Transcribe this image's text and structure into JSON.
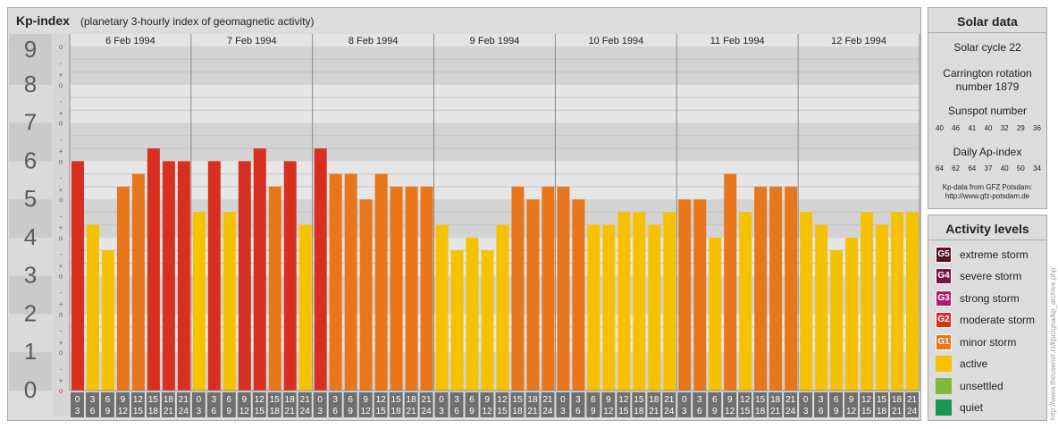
{
  "header": {
    "title": "Kp-index",
    "subtitle": "(planetary 3-hourly index of geomagnetic activity)"
  },
  "chart_data": {
    "type": "bar",
    "title": "Kp-index",
    "subtitle": "(planetary 3-hourly index of geomagnetic activity)",
    "ylim": [
      0,
      9
    ],
    "y_ticks": [
      "0",
      "1",
      "2",
      "3",
      "4",
      "5",
      "6",
      "7",
      "8",
      "9"
    ],
    "y_minor_ticks": [
      "o",
      "+",
      "-"
    ],
    "days": [
      "6 Feb 1994",
      "7 Feb 1994",
      "8 Feb 1994",
      "9 Feb 1994",
      "10 Feb 1994",
      "11 Feb 1994",
      "12 Feb 1994"
    ],
    "interval_labels": [
      {
        "start": "0",
        "end": "3"
      },
      {
        "start": "3",
        "end": "6"
      },
      {
        "start": "6",
        "end": "9"
      },
      {
        "start": "9",
        "end": "12"
      },
      {
        "start": "12",
        "end": "15"
      },
      {
        "start": "15",
        "end": "18"
      },
      {
        "start": "18",
        "end": "21"
      },
      {
        "start": "21",
        "end": "24"
      }
    ],
    "values": [
      6.0,
      4.333,
      3.667,
      5.333,
      5.667,
      6.333,
      6.0,
      6.0,
      4.667,
      6.0,
      4.667,
      6.0,
      6.333,
      5.333,
      6.0,
      4.333,
      6.333,
      5.667,
      5.667,
      5.0,
      5.667,
      5.333,
      5.333,
      5.333,
      4.333,
      3.667,
      4.0,
      3.667,
      4.333,
      5.333,
      5.0,
      5.333,
      5.333,
      5.0,
      4.333,
      4.333,
      4.667,
      4.667,
      4.333,
      4.667,
      5.0,
      5.0,
      4.0,
      5.667,
      4.667,
      5.333,
      5.333,
      5.333,
      4.667,
      4.333,
      3.667,
      4.0,
      4.667,
      4.333,
      4.667,
      4.667
    ],
    "colors": {
      "G5": "#5a1128",
      "G4": "#7a1248",
      "G3": "#b21a6a",
      "G2": "#d83020",
      "G1": "#e8761a",
      "active": "#f6c200",
      "unsettled": "#7fba3a",
      "quiet": "#1a9850"
    },
    "grid": true,
    "legend": "right"
  },
  "solar": {
    "title": "Solar data",
    "cycle": "Solar cycle 22",
    "carrington_line1": "Carrington rotation",
    "carrington_line2": "number 1879",
    "sunspot_label": "Sunspot number",
    "sunspot_values": [
      "40",
      "46",
      "41",
      "40",
      "32",
      "29",
      "36"
    ],
    "ap_label": "Daily Ap-index",
    "ap_values": [
      "64",
      "62",
      "64",
      "37",
      "40",
      "50",
      "34"
    ],
    "source_line1": "Kp-data from GFZ Potsdam:",
    "source_line2": "http://www.gfz-potsdam.de"
  },
  "activity": {
    "title": "Activity levels",
    "items": [
      {
        "badge": "G5",
        "label": "extreme storm",
        "color": "#5a1128"
      },
      {
        "badge": "G4",
        "label": "severe storm",
        "color": "#7a1248"
      },
      {
        "badge": "G3",
        "label": "strong storm",
        "color": "#b21a6a"
      },
      {
        "badge": "G2",
        "label": "moderate storm",
        "color": "#d83020"
      },
      {
        "badge": "G1",
        "label": "minor storm",
        "color": "#e8761a"
      },
      {
        "badge": "",
        "label": "active",
        "color": "#f6c200"
      },
      {
        "badge": "",
        "label": "unsettled",
        "color": "#7fba3a"
      },
      {
        "badge": "",
        "label": "quiet",
        "color": "#1a9850"
      }
    ]
  },
  "credit": "http://www.theusenet.nl/kprogna/kp_archive.php"
}
